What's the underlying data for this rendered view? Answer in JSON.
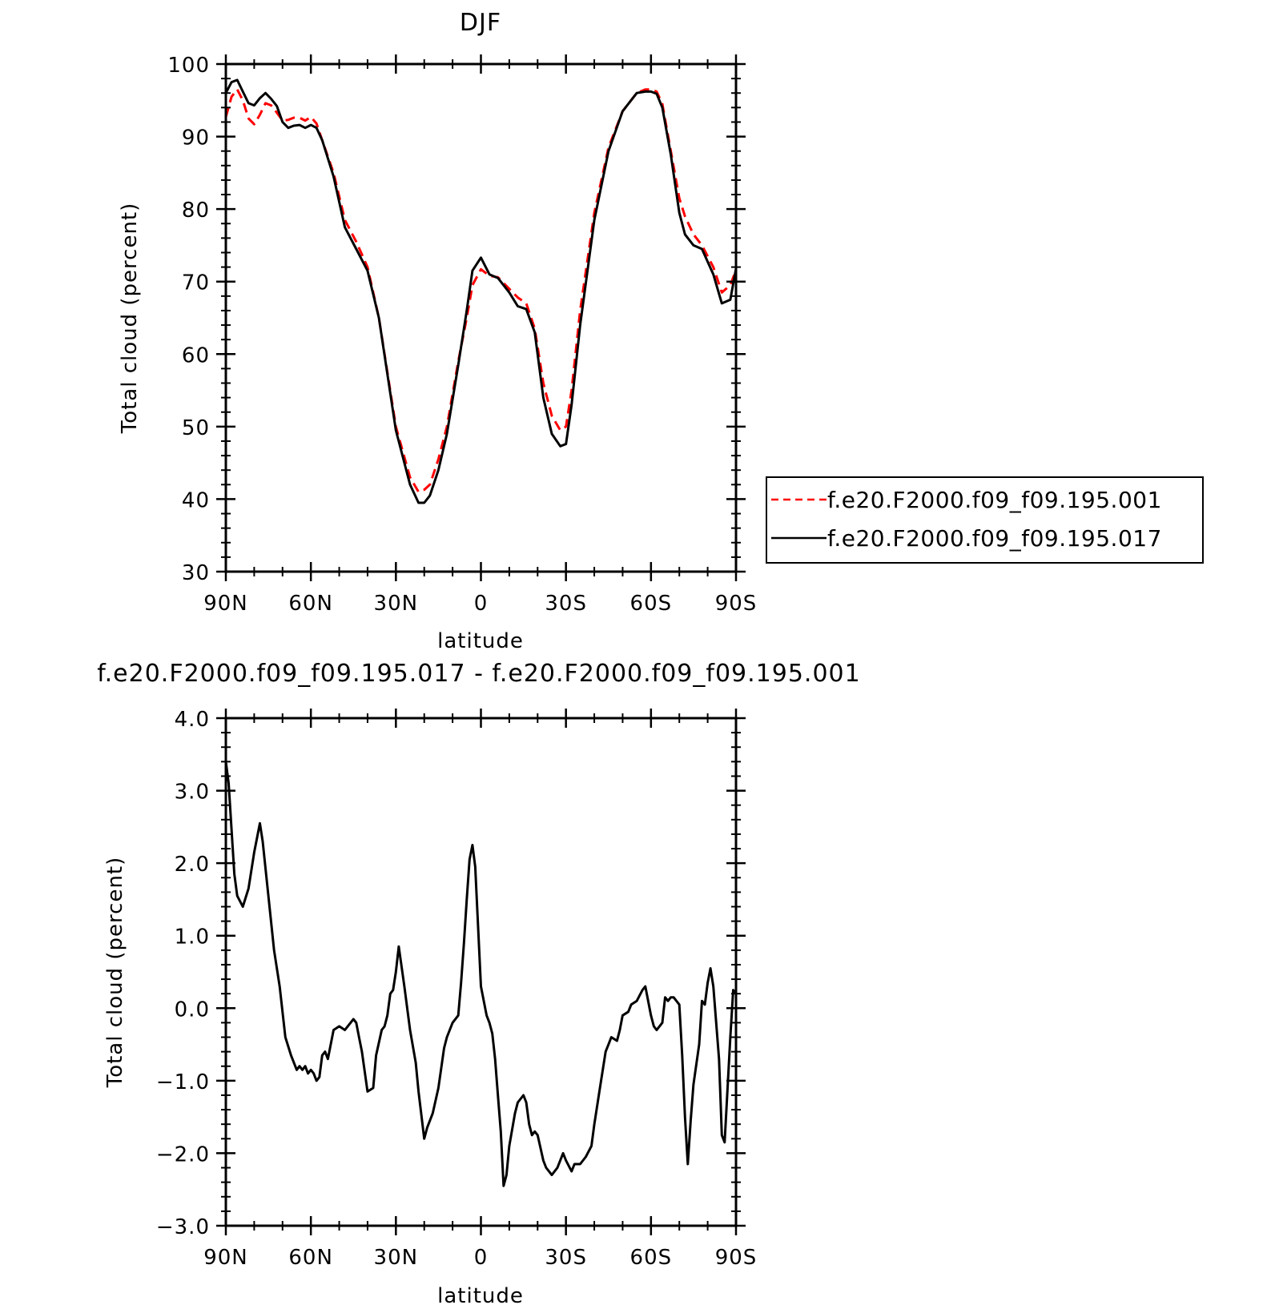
{
  "chart_data": [
    {
      "type": "line",
      "title": "DJF",
      "xlabel": "latitude",
      "ylabel": "Total cloud (percent)",
      "xlim": [
        90,
        -90
      ],
      "ylim": [
        30,
        100
      ],
      "xticks": [
        90,
        60,
        30,
        0,
        -30,
        -60,
        -90
      ],
      "xtick_labels": [
        "90N",
        "60N",
        "30N",
        "0",
        "30S",
        "60S",
        "90S"
      ],
      "yticks": [
        30,
        40,
        50,
        60,
        70,
        80,
        90,
        100
      ],
      "ytick_labels": [
        "30",
        "40",
        "50",
        "60",
        "70",
        "80",
        "90",
        "100"
      ],
      "legend_position": "right",
      "series": [
        {
          "name": "f.e20.F2000.f09_f09.195.001",
          "color": "#ff0000",
          "style": "dashed",
          "x": [
            90,
            88,
            86,
            84,
            82,
            80,
            78,
            76,
            74,
            72,
            70,
            68,
            66,
            64,
            62,
            60,
            58,
            56,
            52,
            48,
            46,
            44,
            40,
            36,
            30,
            25,
            22,
            20,
            18,
            15,
            12,
            8,
            5,
            3,
            0,
            -3,
            -6,
            -10,
            -13,
            -16,
            -19,
            -22,
            -25,
            -28,
            -30,
            -32,
            -35,
            -40,
            -45,
            -50,
            -55,
            -58,
            -60,
            -62,
            -64,
            -67,
            -70,
            -72,
            -75,
            -78,
            -82,
            -85,
            -88,
            -90
          ],
          "y": [
            92.7,
            95.5,
            96.5,
            95.0,
            92.5,
            91.7,
            93.0,
            94.6,
            94.3,
            93.3,
            92.2,
            92.3,
            92.6,
            92.6,
            92.2,
            92.7,
            91.8,
            89.5,
            85.0,
            78.5,
            77.0,
            75.5,
            72.0,
            65.0,
            50.0,
            43.0,
            41.0,
            41.3,
            42.0,
            45.5,
            50.0,
            59.0,
            65.0,
            69.5,
            71.7,
            70.8,
            70.6,
            69.0,
            67.8,
            67.0,
            63.5,
            56.0,
            51.5,
            49.5,
            50.0,
            55.0,
            66.0,
            79.5,
            88.5,
            93.5,
            96.0,
            96.5,
            96.5,
            96.2,
            94.5,
            88.0,
            81.5,
            79.0,
            76.5,
            75.0,
            72.0,
            68.5,
            69.5,
            71.6
          ]
        },
        {
          "name": "f.e20.F2000.f09_f09.195.017",
          "color": "#000000",
          "style": "solid",
          "x": [
            90,
            88,
            86,
            84,
            82,
            80,
            78,
            76,
            74,
            72,
            70,
            68,
            66,
            64,
            62,
            60,
            58,
            56,
            52,
            48,
            46,
            44,
            40,
            36,
            30,
            25,
            22,
            20,
            18,
            15,
            12,
            8,
            5,
            3,
            0,
            -3,
            -6,
            -10,
            -13,
            -16,
            -19,
            -22,
            -25,
            -28,
            -30,
            -32,
            -35,
            -40,
            -45,
            -50,
            -55,
            -58,
            -60,
            -62,
            -64,
            -67,
            -70,
            -72,
            -75,
            -78,
            -82,
            -85,
            -88,
            -90
          ],
          "y": [
            96.0,
            97.5,
            97.8,
            96.2,
            94.6,
            94.3,
            95.3,
            96.0,
            95.2,
            94.2,
            92.0,
            91.2,
            91.5,
            91.6,
            91.2,
            91.6,
            91.2,
            89.5,
            84.5,
            77.5,
            76.0,
            74.5,
            71.5,
            65.0,
            49.5,
            42.0,
            39.5,
            39.5,
            40.5,
            44.0,
            49.0,
            58.5,
            66.0,
            71.5,
            73.3,
            71.0,
            70.5,
            68.5,
            66.6,
            66.2,
            63.0,
            54.0,
            49.0,
            47.3,
            47.6,
            53.0,
            64.0,
            78.5,
            88.0,
            93.5,
            96.0,
            96.2,
            96.2,
            95.9,
            94.0,
            87.5,
            79.5,
            76.5,
            75.0,
            74.5,
            71.0,
            67.0,
            67.5,
            71.8
          ]
        }
      ]
    },
    {
      "type": "line",
      "title": "f.e20.F2000.f09_f09.195.017 - f.e20.F2000.f09_f09.195.001",
      "xlabel": "latitude",
      "ylabel": "Total cloud (percent)",
      "xlim": [
        90,
        -90
      ],
      "ylim": [
        -3.0,
        4.0
      ],
      "xticks": [
        90,
        60,
        30,
        0,
        -30,
        -60,
        -90
      ],
      "xtick_labels": [
        "90N",
        "60N",
        "30N",
        "0",
        "30S",
        "60S",
        "90S"
      ],
      "yticks": [
        -3.0,
        -2.0,
        -1.0,
        0.0,
        1.0,
        2.0,
        3.0,
        4.0
      ],
      "ytick_labels": [
        "−3.0",
        "−2.0",
        "−1.0",
        "0.0",
        "1.0",
        "2.0",
        "3.0",
        "4.0"
      ],
      "series": [
        {
          "color": "#000000",
          "style": "solid",
          "x": [
            90,
            89,
            87,
            86,
            84,
            82,
            80,
            78,
            77,
            75,
            73,
            71,
            69,
            67,
            65,
            64,
            63,
            62,
            61,
            60,
            59,
            58,
            57,
            56,
            55,
            54,
            52,
            50,
            48,
            47,
            45,
            44,
            43,
            42,
            40,
            38,
            37,
            35,
            34,
            33,
            32,
            31,
            30,
            29,
            27,
            25,
            23,
            22,
            20,
            19,
            17,
            15,
            13,
            12,
            10,
            8,
            7,
            6,
            5,
            4,
            3,
            2,
            0,
            -2,
            -3,
            -4,
            -5,
            -6,
            -7,
            -8,
            -9,
            -10,
            -12,
            -13,
            -15,
            -16,
            -17,
            -18,
            -19,
            -20,
            -22,
            -23,
            -25,
            -27,
            -29,
            -30,
            -32,
            -33,
            -35,
            -37,
            -39,
            -40,
            -42,
            -44,
            -45,
            -46,
            -48,
            -49,
            -50,
            -52,
            -53,
            -55,
            -57,
            -58,
            -59,
            -60,
            -61,
            -62,
            -64,
            -65,
            -66,
            -67,
            -68,
            -70,
            -71,
            -72,
            -73,
            -74,
            -75,
            -77,
            -78,
            -79,
            -80,
            -81,
            -82,
            -84,
            -85,
            -86,
            -88,
            -89,
            -90
          ],
          "y": [
            3.4,
            3.1,
            1.85,
            1.55,
            1.4,
            1.65,
            2.15,
            2.55,
            2.3,
            1.55,
            0.8,
            0.3,
            -0.4,
            -0.65,
            -0.85,
            -0.8,
            -0.85,
            -0.8,
            -0.9,
            -0.85,
            -0.9,
            -1.0,
            -0.95,
            -0.65,
            -0.6,
            -0.7,
            -0.3,
            -0.25,
            -0.3,
            -0.25,
            -0.15,
            -0.2,
            -0.4,
            -0.6,
            -1.15,
            -1.1,
            -0.65,
            -0.3,
            -0.25,
            -0.1,
            0.2,
            0.25,
            0.5,
            0.85,
            0.3,
            -0.3,
            -0.75,
            -1.15,
            -1.8,
            -1.65,
            -1.45,
            -1.1,
            -0.55,
            -0.4,
            -0.2,
            -0.1,
            0.35,
            0.9,
            1.5,
            2.05,
            2.25,
            1.95,
            0.3,
            -0.1,
            -0.2,
            -0.35,
            -0.7,
            -1.2,
            -1.7,
            -2.45,
            -2.3,
            -1.9,
            -1.45,
            -1.3,
            -1.2,
            -1.3,
            -1.6,
            -1.75,
            -1.7,
            -1.75,
            -2.1,
            -2.2,
            -2.3,
            -2.2,
            -2.0,
            -2.1,
            -2.25,
            -2.15,
            -2.15,
            -2.05,
            -1.9,
            -1.6,
            -1.1,
            -0.6,
            -0.5,
            -0.4,
            -0.45,
            -0.3,
            -0.1,
            -0.05,
            0.05,
            0.1,
            0.25,
            0.3,
            0.1,
            -0.1,
            -0.25,
            -0.3,
            -0.2,
            0.15,
            0.1,
            0.15,
            0.15,
            0.05,
            -0.65,
            -1.5,
            -2.15,
            -1.55,
            -1.05,
            -0.5,
            0.1,
            0.05,
            0.35,
            0.55,
            0.3,
            -0.7,
            -1.75,
            -1.85,
            -0.4,
            0.25,
            0.2
          ]
        }
      ]
    }
  ]
}
